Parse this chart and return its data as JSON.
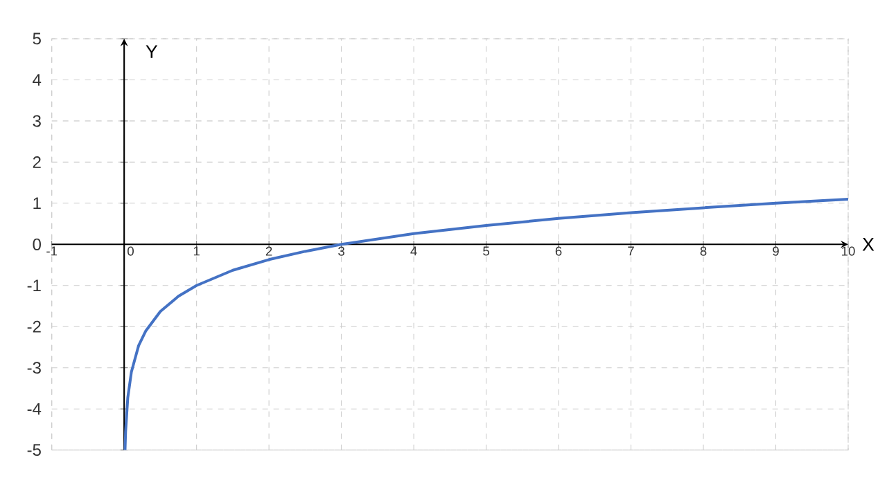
{
  "chart_data": {
    "type": "line",
    "xlabel": "X",
    "ylabel": "Y",
    "x": [
      0.0123,
      0.02,
      0.05,
      0.1,
      0.2,
      0.3,
      0.5,
      0.75,
      1,
      1.5,
      2,
      2.5,
      3,
      4,
      5,
      6,
      7,
      8,
      9,
      10
    ],
    "series": [
      {
        "color": "#4472c4",
        "values": [
          -5.0,
          -4.56,
          -3.73,
          -3.1,
          -2.46,
          -2.1,
          -1.63,
          -1.26,
          -1.0,
          -0.63,
          -0.37,
          -0.17,
          0.0,
          0.26,
          0.46,
          0.63,
          0.77,
          0.89,
          1.0,
          1.1
        ]
      }
    ],
    "xlim": [
      -1,
      10
    ],
    "ylim": [
      -5,
      5
    ],
    "xticks": [
      -1,
      0,
      1,
      2,
      3,
      4,
      5,
      6,
      7,
      8,
      9,
      10
    ],
    "yticks": [
      -5,
      -4,
      -3,
      -2,
      -1,
      0,
      1,
      2,
      3,
      4,
      5
    ],
    "grid": true,
    "marker": "none",
    "line_style": "solid"
  }
}
